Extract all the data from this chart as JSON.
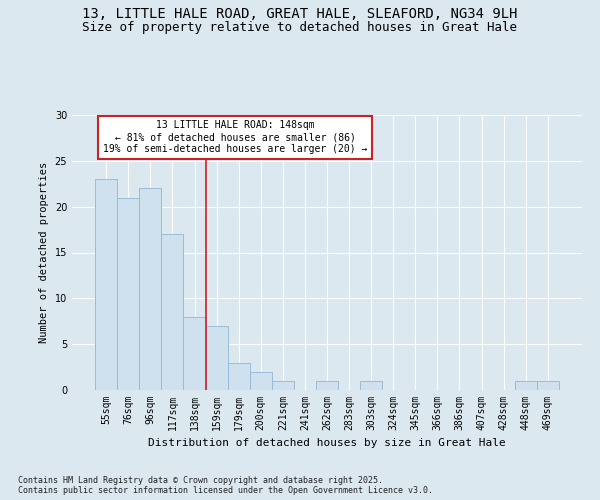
{
  "title_line1": "13, LITTLE HALE ROAD, GREAT HALE, SLEAFORD, NG34 9LH",
  "title_line2": "Size of property relative to detached houses in Great Hale",
  "xlabel": "Distribution of detached houses by size in Great Hale",
  "ylabel": "Number of detached properties",
  "categories": [
    "55sqm",
    "76sqm",
    "96sqm",
    "117sqm",
    "138sqm",
    "159sqm",
    "179sqm",
    "200sqm",
    "221sqm",
    "241sqm",
    "262sqm",
    "283sqm",
    "303sqm",
    "324sqm",
    "345sqm",
    "366sqm",
    "386sqm",
    "407sqm",
    "428sqm",
    "448sqm",
    "469sqm"
  ],
  "values": [
    23,
    21,
    22,
    17,
    8,
    7,
    3,
    2,
    1,
    0,
    1,
    0,
    1,
    0,
    0,
    0,
    0,
    0,
    0,
    1,
    1
  ],
  "bar_color": "#cfe0ef",
  "bar_edge_color": "#9bbcd6",
  "reference_line_x": 4.5,
  "reference_line_color": "#cc2222",
  "annotation_title": "13 LITTLE HALE ROAD: 148sqm",
  "annotation_line2": "← 81% of detached houses are smaller (86)",
  "annotation_line3": "19% of semi-detached houses are larger (20) →",
  "annotation_box_color": "#ffffff",
  "annotation_box_edge": "#cc2222",
  "ylim": [
    0,
    30
  ],
  "yticks": [
    0,
    5,
    10,
    15,
    20,
    25,
    30
  ],
  "footer_line1": "Contains HM Land Registry data © Crown copyright and database right 2025.",
  "footer_line2": "Contains public sector information licensed under the Open Government Licence v3.0.",
  "bg_color": "#dce8f0",
  "plot_bg_color": "#dce8f0",
  "grid_color": "#ffffff",
  "title_fontsize": 10,
  "subtitle_fontsize": 9
}
